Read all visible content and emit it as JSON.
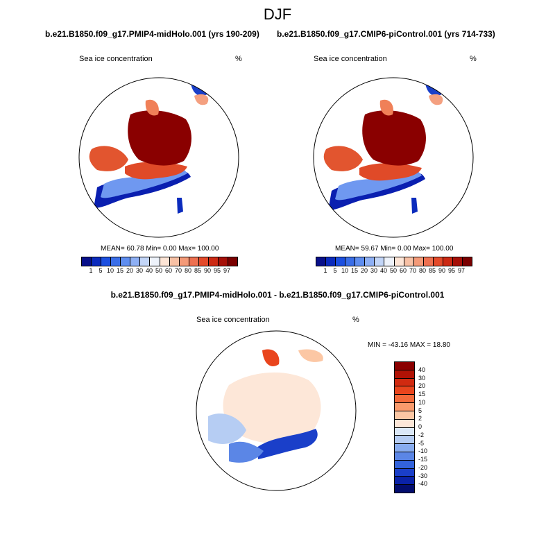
{
  "page_title": "DJF",
  "panels": [
    {
      "run_title": "b.e21.B1850.f09_g17.PMIP4-midHolo.001 (yrs 190-209)",
      "variable": "Sea ice concentration",
      "units": "%",
      "stats": "MEAN=  60.78  Min=   0.00  Max= 100.00"
    },
    {
      "run_title": "b.e21.B1850.f09_g17.CMIP6-piControl.001 (yrs 714-733)",
      "variable": "Sea ice concentration",
      "units": "%",
      "stats": "MEAN=  59.67  Min=   0.00  Max= 100.00"
    }
  ],
  "diff_panel": {
    "run_title": "b.e21.B1850.f09_g17.PMIP4-midHolo.001 - b.e21.B1850.f09_g17.CMIP6-piControl.001",
    "variable": "Sea ice concentration",
    "units": "%",
    "stats": "MIN = -43.16 MAX =  18.80"
  },
  "colorbar_levels": [
    "1",
    "5",
    "10",
    "15",
    "20",
    "30",
    "40",
    "50",
    "60",
    "70",
    "80",
    "85",
    "90",
    "95",
    "97"
  ],
  "colorbar_colors": [
    "#08108a",
    "#0b2bbd",
    "#1c4fe0",
    "#3a6ee8",
    "#5f8ef0",
    "#8eb0f5",
    "#c3d6f8",
    "#eef3fb",
    "#fde5d6",
    "#f8c1a5",
    "#f49a78",
    "#ee7050",
    "#e44a2a",
    "#cc2a14",
    "#a61008",
    "#7a0000"
  ],
  "diff_levels": [
    "40",
    "30",
    "20",
    "15",
    "10",
    "5",
    "2",
    "0",
    "-2",
    "-5",
    "-10",
    "-15",
    "-20",
    "-30",
    "-40"
  ],
  "diff_colors": [
    "#8a0000",
    "#b01205",
    "#d12a10",
    "#e9451d",
    "#f36a3a",
    "#f99a6c",
    "#fcc7a4",
    "#fde7d8",
    "#dbe8f8",
    "#b6cdf3",
    "#88acef",
    "#5b86e6",
    "#3363dc",
    "#1a3fc9",
    "#0a22a8",
    "#030d6e"
  ]
}
